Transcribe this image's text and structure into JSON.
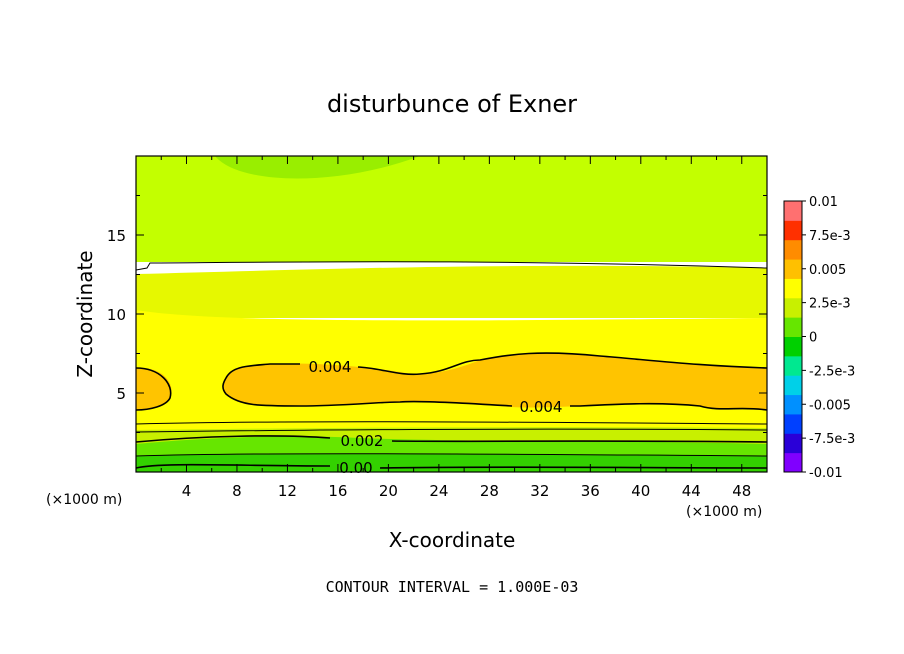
{
  "chart_data": {
    "type": "heatmap",
    "title": "disturbunce of Exner",
    "xlabel": "X-coordinate",
    "ylabel": "Z-coordinate",
    "x_unit_left": "(×1000 m)",
    "x_unit_right": "(×1000 m)",
    "xlim": [
      0,
      50
    ],
    "ylim": [
      0,
      20
    ],
    "x_ticks": [
      "4",
      "8",
      "12",
      "16",
      "20",
      "24",
      "28",
      "32",
      "36",
      "40",
      "44",
      "48"
    ],
    "y_ticks": [
      "5",
      "10",
      "15"
    ],
    "contour_interval_text": "CONTOUR INTERVAL = 1.000E-03",
    "contour_labels": [
      "0.004",
      "0.004",
      "0.002",
      "0.00"
    ],
    "colorbar": {
      "labels": [
        "0.01",
        "7.5e-3",
        "0.005",
        "2.5e-3",
        "0",
        "-2.5e-3",
        "-0.005",
        "-7.5e-3",
        "-0.01"
      ],
      "range": [
        -0.01,
        0.01
      ],
      "colors_bottom_to_top": [
        "#8000ff",
        "#2a00d8",
        "#0040ff",
        "#0090ff",
        "#00d0e8",
        "#00e890",
        "#00d000",
        "#66e600",
        "#c8f000",
        "#ffff00",
        "#ffc000",
        "#ff8c00",
        "#ff3000",
        "#ff7070"
      ]
    },
    "field_bands": [
      {
        "z_range": [
          0,
          1
        ],
        "value": 0.0005,
        "color": "#33d100"
      },
      {
        "z_range": [
          1,
          2.6
        ],
        "value": 0.0015,
        "color": "#80e600"
      },
      {
        "z_range": [
          2.6,
          4
        ],
        "value": 0.0032,
        "color": "#ffff00"
      },
      {
        "z_range": [
          4,
          7
        ],
        "value": 0.0045,
        "color": "#ffc400"
      },
      {
        "z_range": [
          7,
          10
        ],
        "value": 0.0032,
        "color": "#ffff00"
      },
      {
        "z_range": [
          10,
          13
        ],
        "value": 0.0027,
        "color": "#e6f800"
      },
      {
        "z_range": [
          13,
          20
        ],
        "value": 0.0022,
        "color": "#c3ff00"
      }
    ]
  }
}
